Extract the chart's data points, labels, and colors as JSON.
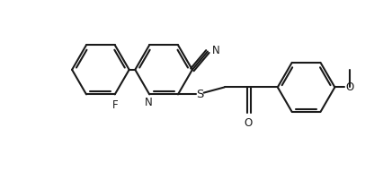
{
  "background_color": "#ffffff",
  "line_color": "#1a1a1a",
  "S_color": "#1a1a1a",
  "O_color": "#1a1a1a",
  "F_color": "#1a1a1a",
  "N_color": "#1a1a1a",
  "line_width": 1.5,
  "font_size": 8.5,
  "xlim": [
    0,
    9.5
  ],
  "ylim": [
    0,
    4.2
  ]
}
